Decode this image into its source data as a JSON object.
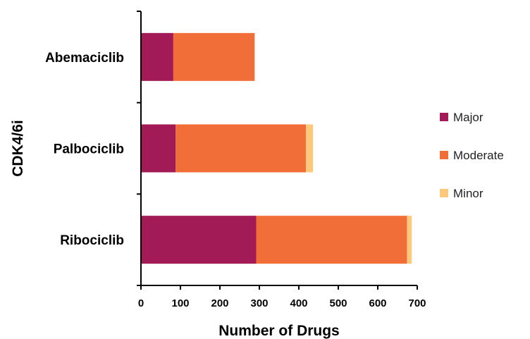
{
  "chart_data": {
    "type": "bar",
    "orientation": "horizontal",
    "stacked": true,
    "categories": [
      "Abemaciclib",
      "Palbociclib",
      "Ribociclib"
    ],
    "series": [
      {
        "name": "Major",
        "values": [
          82,
          88,
          292
        ],
        "color": "#a21b56"
      },
      {
        "name": "Moderate",
        "values": [
          206,
          330,
          382
        ],
        "color": "#f26e38"
      },
      {
        "name": "Minor",
        "values": [
          0,
          18,
          12
        ],
        "color": "#fcc97c"
      }
    ],
    "xlabel": "Number of Drugs",
    "ylabel": "CDK4/6i",
    "xlim": [
      0,
      700
    ],
    "xticks": [
      "0",
      "100",
      "200",
      "300",
      "400",
      "500",
      "600",
      "700"
    ],
    "grid": false,
    "legend_position": "right"
  }
}
